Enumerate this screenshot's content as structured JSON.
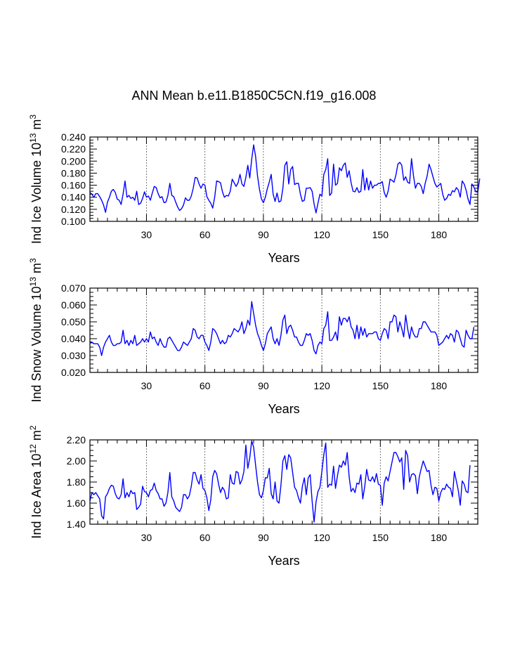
{
  "title": "ANN Mean b.e11.B1850C5CN.f19_g16.008",
  "line_color": "#0000ff",
  "chart_data": [
    {
      "type": "line",
      "ylabel": {
        "base": "Ind Ice Volume 10",
        "exp": "13",
        "unit": " m",
        "unit_exp": "3"
      },
      "xlabel": "Years",
      "xlim": [
        1,
        200
      ],
      "ylim": [
        0.1,
        0.24
      ],
      "xticks": [
        30,
        60,
        90,
        120,
        150,
        180
      ],
      "xtick_labels": [
        "30",
        "60",
        "90",
        "120",
        "150",
        "180"
      ],
      "yticks": [
        0.1,
        0.12,
        0.14,
        0.16,
        0.18,
        0.2,
        0.22,
        0.24
      ],
      "ytick_labels": [
        "0.100",
        "0.120",
        "0.140",
        "0.160",
        "0.180",
        "0.200",
        "0.220",
        "0.240"
      ],
      "x_start": 1,
      "values": [
        0.148,
        0.145,
        0.14,
        0.146,
        0.146,
        0.141,
        0.135,
        0.127,
        0.115,
        0.132,
        0.14,
        0.15,
        0.153,
        0.148,
        0.137,
        0.135,
        0.128,
        0.145,
        0.167,
        0.14,
        0.143,
        0.138,
        0.14,
        0.135,
        0.15,
        0.128,
        0.13,
        0.138,
        0.149,
        0.14,
        0.142,
        0.135,
        0.147,
        0.158,
        0.156,
        0.146,
        0.139,
        0.141,
        0.131,
        0.132,
        0.143,
        0.163,
        0.143,
        0.141,
        0.132,
        0.124,
        0.118,
        0.121,
        0.127,
        0.139,
        0.135,
        0.135,
        0.142,
        0.155,
        0.173,
        0.172,
        0.162,
        0.155,
        0.162,
        0.16,
        0.141,
        0.135,
        0.13,
        0.122,
        0.14,
        0.167,
        0.166,
        0.164,
        0.149,
        0.14,
        0.143,
        0.142,
        0.15,
        0.17,
        0.164,
        0.158,
        0.164,
        0.178,
        0.162,
        0.158,
        0.173,
        0.193,
        0.172,
        0.203,
        0.227,
        0.208,
        0.175,
        0.153,
        0.137,
        0.131,
        0.14,
        0.154,
        0.165,
        0.178,
        0.145,
        0.133,
        0.147,
        0.132,
        0.134,
        0.155,
        0.193,
        0.199,
        0.162,
        0.186,
        0.191,
        0.161,
        0.163,
        0.163,
        0.145,
        0.133,
        0.135,
        0.155,
        0.155,
        0.156,
        0.15,
        0.129,
        0.114,
        0.13,
        0.145,
        0.142,
        0.178,
        0.186,
        0.204,
        0.143,
        0.147,
        0.195,
        0.16,
        0.163,
        0.189,
        0.184,
        0.193,
        0.197,
        0.173,
        0.184,
        0.164,
        0.15,
        0.149,
        0.156,
        0.148,
        0.15,
        0.186,
        0.152,
        0.172,
        0.152,
        0.167,
        0.155,
        0.16,
        0.16,
        0.163,
        0.163,
        0.166,
        0.148,
        0.14,
        0.15,
        0.17,
        0.168,
        0.165,
        0.177,
        0.195,
        0.198,
        0.193,
        0.168,
        0.174,
        0.165,
        0.163,
        0.204,
        0.176,
        0.155,
        0.163,
        0.163,
        0.158,
        0.146,
        0.163,
        0.175,
        0.195,
        0.186,
        0.174,
        0.163,
        0.157,
        0.16,
        0.163,
        0.145,
        0.135,
        0.138,
        0.145,
        0.143,
        0.151,
        0.149,
        0.156,
        0.152,
        0.14,
        0.167,
        0.162,
        0.152,
        0.137,
        0.128,
        0.162,
        0.157,
        0.149,
        0.149,
        0.171
      ]
    },
    {
      "type": "line",
      "ylabel": {
        "base": "Ind Snow Volume 10",
        "exp": "13",
        "unit": " m",
        "unit_exp": "3"
      },
      "xlabel": "Years",
      "xlim": [
        1,
        200
      ],
      "ylim": [
        0.02,
        0.07
      ],
      "xticks": [
        30,
        60,
        90,
        120,
        150,
        180
      ],
      "xtick_labels": [
        "30",
        "60",
        "90",
        "120",
        "150",
        "180"
      ],
      "yticks": [
        0.02,
        0.03,
        0.04,
        0.05,
        0.06,
        0.07
      ],
      "ytick_labels": [
        "0.020",
        "0.030",
        "0.040",
        "0.050",
        "0.060",
        "0.070"
      ],
      "x_start": 1,
      "values": [
        0.038,
        0.038,
        0.037,
        0.037,
        0.037,
        0.035,
        0.03,
        0.035,
        0.038,
        0.04,
        0.042,
        0.038,
        0.036,
        0.036,
        0.037,
        0.037,
        0.038,
        0.045,
        0.037,
        0.039,
        0.036,
        0.039,
        0.037,
        0.042,
        0.036,
        0.037,
        0.038,
        0.04,
        0.038,
        0.04,
        0.038,
        0.044,
        0.04,
        0.041,
        0.038,
        0.036,
        0.04,
        0.037,
        0.035,
        0.035,
        0.04,
        0.041,
        0.039,
        0.037,
        0.035,
        0.033,
        0.033,
        0.035,
        0.038,
        0.037,
        0.036,
        0.038,
        0.04,
        0.046,
        0.045,
        0.041,
        0.04,
        0.042,
        0.042,
        0.038,
        0.036,
        0.033,
        0.038,
        0.046,
        0.045,
        0.043,
        0.04,
        0.037,
        0.039,
        0.037,
        0.038,
        0.042,
        0.041,
        0.043,
        0.046,
        0.045,
        0.044,
        0.046,
        0.05,
        0.043,
        0.046,
        0.051,
        0.048,
        0.062,
        0.055,
        0.048,
        0.043,
        0.04,
        0.036,
        0.033,
        0.037,
        0.043,
        0.045,
        0.047,
        0.04,
        0.037,
        0.04,
        0.036,
        0.042,
        0.051,
        0.054,
        0.043,
        0.047,
        0.048,
        0.045,
        0.041,
        0.041,
        0.038,
        0.036,
        0.036,
        0.039,
        0.043,
        0.042,
        0.043,
        0.039,
        0.033,
        0.031,
        0.036,
        0.038,
        0.037,
        0.046,
        0.048,
        0.056,
        0.039,
        0.039,
        0.041,
        0.044,
        0.039,
        0.053,
        0.048,
        0.052,
        0.052,
        0.05,
        0.053,
        0.047,
        0.045,
        0.04,
        0.048,
        0.04,
        0.047,
        0.042,
        0.046,
        0.041,
        0.043,
        0.043,
        0.043,
        0.044,
        0.044,
        0.04,
        0.039,
        0.043,
        0.046,
        0.045,
        0.04,
        0.05,
        0.05,
        0.054,
        0.053,
        0.044,
        0.05,
        0.046,
        0.041,
        0.054,
        0.046,
        0.04,
        0.047,
        0.043,
        0.041,
        0.041,
        0.046,
        0.046,
        0.05,
        0.05,
        0.048,
        0.046,
        0.044,
        0.044,
        0.044,
        0.042,
        0.036,
        0.037,
        0.038,
        0.04,
        0.042,
        0.04,
        0.043,
        0.042,
        0.038,
        0.045,
        0.044,
        0.04,
        0.036,
        0.035,
        0.045,
        0.042,
        0.04,
        0.04,
        0.047
      ]
    },
    {
      "type": "line",
      "ylabel": {
        "base": "Ind Ice Area 10",
        "exp": "12",
        "unit": " m",
        "unit_exp": "2"
      },
      "xlabel": "Years",
      "xlim": [
        1,
        200
      ],
      "ylim": [
        1.4,
        2.2
      ],
      "xticks": [
        30,
        60,
        90,
        120,
        150,
        180
      ],
      "xtick_labels": [
        "30",
        "60",
        "90",
        "120",
        "150",
        "180"
      ],
      "yticks": [
        1.4,
        1.6,
        1.8,
        2.0,
        2.2
      ],
      "ytick_labels": [
        "1.40",
        "1.60",
        "1.80",
        "2.00",
        "2.20"
      ],
      "x_start": 1,
      "values": [
        1.62,
        1.7,
        1.68,
        1.7,
        1.67,
        1.64,
        1.48,
        1.45,
        1.66,
        1.69,
        1.74,
        1.77,
        1.76,
        1.69,
        1.65,
        1.64,
        1.68,
        1.83,
        1.65,
        1.7,
        1.66,
        1.72,
        1.69,
        1.7,
        1.54,
        1.56,
        1.59,
        1.76,
        1.71,
        1.7,
        1.66,
        1.72,
        1.73,
        1.79,
        1.72,
        1.69,
        1.64,
        1.64,
        1.57,
        1.6,
        1.7,
        1.89,
        1.66,
        1.62,
        1.56,
        1.54,
        1.52,
        1.56,
        1.68,
        1.68,
        1.64,
        1.67,
        1.76,
        1.89,
        1.89,
        1.82,
        1.78,
        1.87,
        1.74,
        1.72,
        1.65,
        1.53,
        1.63,
        1.85,
        1.91,
        1.88,
        1.78,
        1.7,
        1.75,
        1.72,
        1.64,
        1.65,
        1.87,
        1.79,
        1.78,
        1.9,
        1.89,
        1.78,
        1.82,
        1.9,
        2.15,
        1.93,
        2.03,
        2.19,
        2.13,
        1.96,
        1.8,
        1.68,
        1.65,
        1.72,
        1.84,
        1.84,
        1.93,
        1.69,
        1.64,
        1.8,
        1.62,
        1.6,
        1.77,
        2.0,
        2.05,
        1.92,
        2.06,
        2.03,
        1.89,
        1.75,
        1.72,
        1.65,
        1.6,
        1.76,
        1.84,
        1.68,
        1.84,
        1.87,
        1.62,
        1.42,
        1.61,
        1.71,
        1.75,
        1.9,
        2.06,
        2.17,
        1.75,
        1.78,
        1.77,
        1.95,
        1.74,
        1.86,
        1.96,
        1.94,
        2.0,
        1.96,
        2.08,
        1.85,
        1.71,
        1.74,
        1.7,
        1.79,
        1.78,
        1.87,
        1.64,
        1.76,
        1.92,
        1.82,
        1.81,
        1.85,
        1.8,
        1.88,
        1.78,
        1.77,
        1.58,
        1.79,
        1.85,
        1.81,
        1.9,
        1.99,
        2.08,
        2.08,
        2.04,
        1.99,
        2.03,
        1.73,
        2.1,
        2.05,
        1.8,
        1.87,
        1.88,
        1.86,
        1.69,
        1.85,
        1.93,
        2.0,
        1.95,
        1.9,
        1.91,
        1.77,
        1.68,
        1.75,
        1.74,
        1.62,
        1.7,
        1.74,
        1.73,
        1.78,
        1.75,
        1.74,
        1.66,
        1.9,
        1.81,
        1.72,
        1.58,
        1.81,
        1.78,
        1.71,
        1.7,
        1.96
      ]
    }
  ]
}
